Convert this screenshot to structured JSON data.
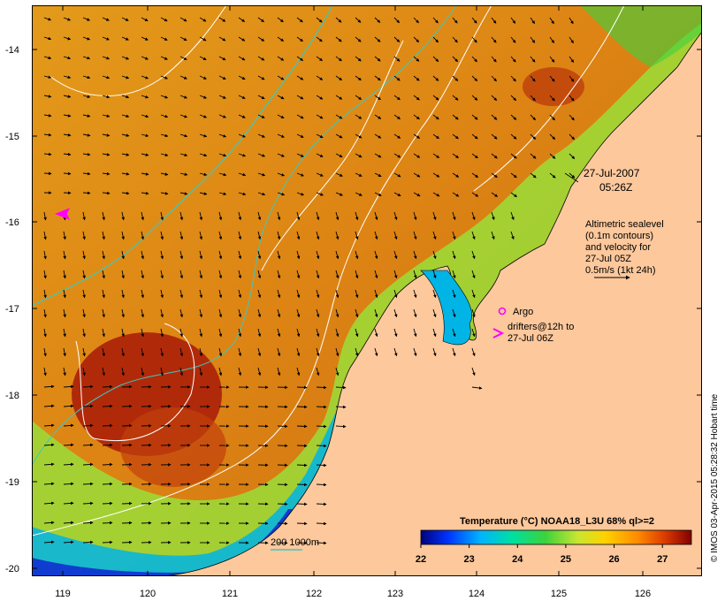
{
  "map": {
    "lat_ticks": [
      "-14",
      "-15",
      "-16",
      "-17",
      "-18",
      "-19",
      "-20"
    ],
    "lon_ticks": [
      "119",
      "120",
      "121",
      "122",
      "123",
      "124",
      "125",
      "126"
    ],
    "lat_range": [
      -20.1,
      -13.5
    ],
    "lon_range": [
      118.6,
      126.7
    ]
  },
  "timestamp": {
    "date": "27-Jul-2007",
    "time": "05:26Z"
  },
  "legend": {
    "altimetry_lines": [
      "Altimetric sealevel",
      "(0.1m contours)",
      "and velocity for",
      "27-Jul 05Z",
      "0.5m/s (1kt 24h)"
    ],
    "argo_label": "Argo",
    "drifters_lines": [
      "drifters@12h to",
      "27-Jul 06Z"
    ],
    "depth_label": "200  1000m"
  },
  "colorbar": {
    "title": "Temperature (°C) NOAA18_L3U 68% ql>=2",
    "ticks": [
      "22",
      "23",
      "24",
      "25",
      "26",
      "27"
    ],
    "range": [
      22,
      27.6
    ]
  },
  "credit": "© IMOS 03-Apr-2015 05:28:32 Hobart time",
  "colors": {
    "land": "#fcc89c",
    "warm_sst": "#e08a12",
    "argo": "#ff00ff",
    "depth_contour": "#3cc8c0",
    "sealevel_contour": "#ffffff"
  }
}
